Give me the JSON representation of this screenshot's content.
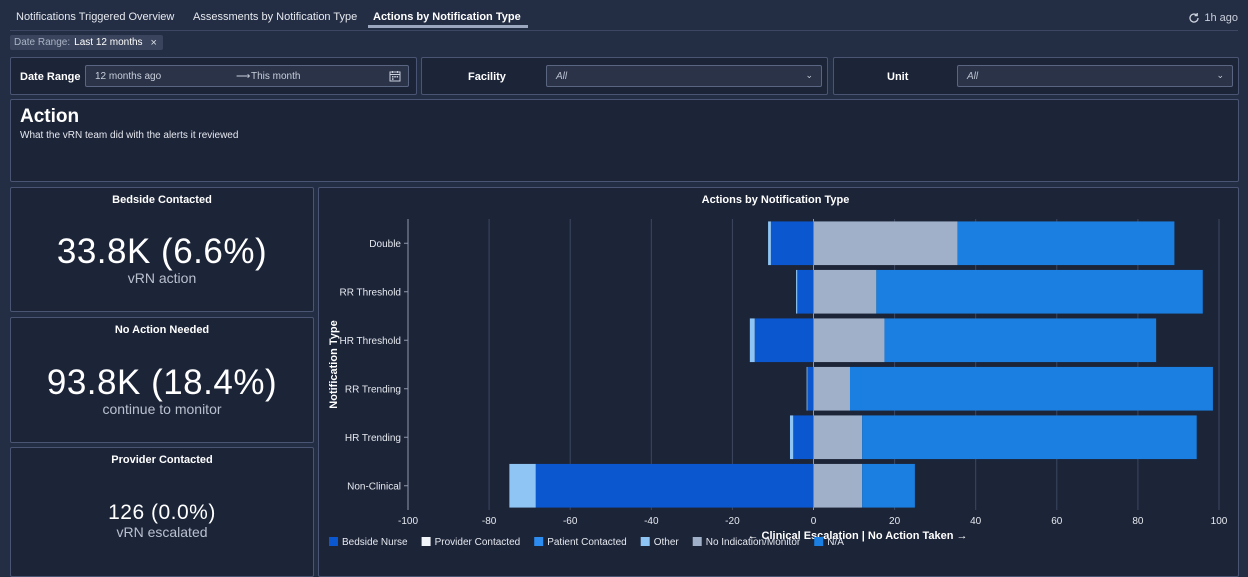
{
  "tabs": [
    {
      "label": "Notifications Triggered Overview",
      "active": false
    },
    {
      "label": "Assessments by Notification Type",
      "active": false
    },
    {
      "label": "Actions by Notification Type",
      "active": true
    }
  ],
  "refresh": {
    "label": "1h ago",
    "icon": "refresh-icon"
  },
  "filter_chip": {
    "key": "Date Range:",
    "value": "Last 12 months",
    "remove_icon": "close-icon"
  },
  "filters": {
    "date_range": {
      "label": "Date Range",
      "start": "12 months ago",
      "arrow": "⟶",
      "end": "This month",
      "icon": "calendar-icon"
    },
    "facility": {
      "label": "Facility",
      "value": "All"
    },
    "unit": {
      "label": "Unit",
      "value": "All"
    }
  },
  "header": {
    "title": "Action",
    "subtitle": "What the vRN team did with the alerts it reviewed"
  },
  "kpis": [
    {
      "title": "Bedside Contacted",
      "value": "33.8K (6.6%)",
      "sub": "vRN action"
    },
    {
      "title": "No Action Needed",
      "value": "93.8K (18.4%)",
      "sub": "continue to monitor"
    },
    {
      "title": "Provider Contacted",
      "value": "126 (0.0%)",
      "sub": "vRN escalated"
    }
  ],
  "chart_data": {
    "type": "bar",
    "orientation": "horizontal",
    "stacked": true,
    "title": "Actions by Notification Type",
    "xlabel": "← Clinical Escalation | No Action Taken →",
    "ylabel": "Notification Type",
    "xlim": [
      -100,
      100
    ],
    "xticks": [
      -100,
      -80,
      -60,
      -40,
      -20,
      0,
      20,
      40,
      60,
      80,
      100
    ],
    "grid": true,
    "legend_position": "bottom",
    "categories": [
      "Double",
      "RR Threshold",
      "HR Threshold",
      "RR Trending",
      "HR Trending",
      "Non-Clinical"
    ],
    "series": [
      {
        "name": "Bedside Nurse",
        "color": "#0b57d0",
        "values": [
          -10.5,
          -4,
          -14.5,
          -1.5,
          -5,
          -68.5
        ]
      },
      {
        "name": "Provider Contacted",
        "color": "#f2f5fa",
        "values": [
          0,
          0,
          0,
          0,
          0,
          0
        ]
      },
      {
        "name": "Patient Contacted",
        "color": "#2d8cf0",
        "values": [
          0,
          0,
          0,
          0,
          0,
          0
        ]
      },
      {
        "name": "Other",
        "color": "#8ec5f5",
        "values": [
          -0.7,
          -0.3,
          -1.2,
          -0.2,
          -0.8,
          -6.5
        ]
      },
      {
        "name": "No Indication/Monitor",
        "color": "#9fb0c8",
        "values": [
          35.5,
          15.5,
          17.5,
          9,
          12,
          12
        ]
      },
      {
        "name": "N/A",
        "color": "#1a7fe0",
        "values": [
          53.5,
          80.5,
          67,
          89.5,
          82.5,
          13
        ]
      }
    ]
  }
}
